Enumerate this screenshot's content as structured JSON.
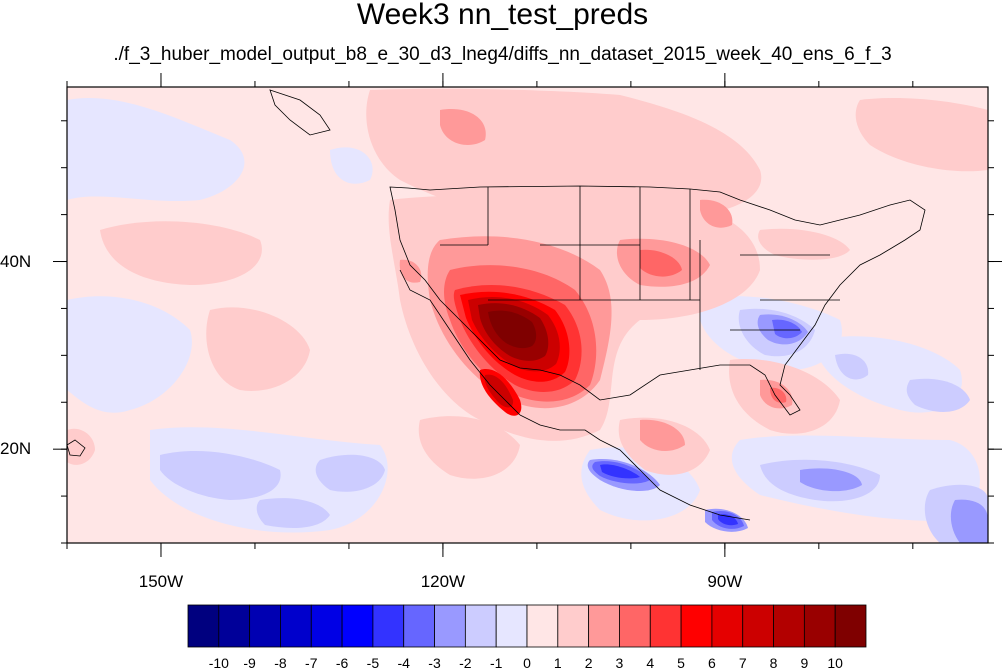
{
  "title": "Week3 nn_test_preds",
  "subtitle": "./f_3_huber_model_output_b8_e_30_d3_lneg4/diffs_nn_dataset_2015_week_40_ens_6_f_3",
  "map": {
    "lon_ticks": [
      {
        "label": "150W",
        "lon": -150
      },
      {
        "label": "120W",
        "lon": -120
      },
      {
        "label": "90W",
        "lon": -90
      }
    ],
    "lat_ticks": [
      {
        "label": "40N",
        "lat": 40
      },
      {
        "label": "20N",
        "lat": 20
      }
    ]
  },
  "colorbar": {
    "levels": [
      "-10",
      "-9",
      "-8",
      "-7",
      "-6",
      "-5",
      "-4",
      "-3",
      "-2",
      "-1",
      "0",
      "1",
      "2",
      "3",
      "4",
      "5",
      "6",
      "7",
      "8",
      "9",
      "10"
    ],
    "colors": [
      "#00007f",
      "#000099",
      "#0000b2",
      "#0000cc",
      "#0000e5",
      "#0000ff",
      "#3333ff",
      "#6666ff",
      "#9999ff",
      "#ccccff",
      "#e6e6ff",
      "#ffe6e6",
      "#ffcccc",
      "#ff9999",
      "#ff6666",
      "#ff3333",
      "#ff0000",
      "#e50000",
      "#cc0000",
      "#b20000",
      "#990000",
      "#7f0000"
    ]
  }
}
